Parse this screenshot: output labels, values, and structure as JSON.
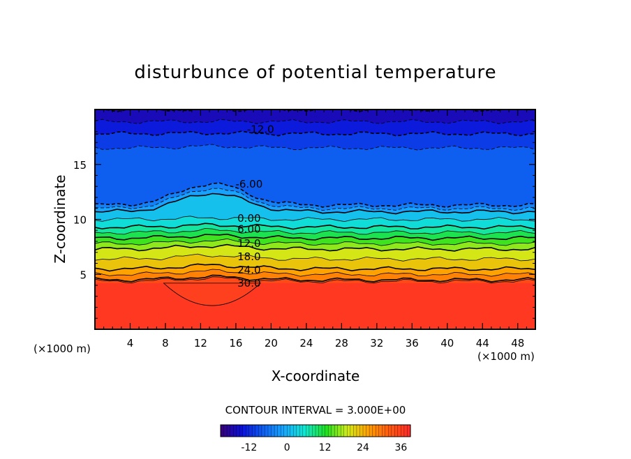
{
  "chart_data": {
    "type": "heatmap",
    "title": "disturbunce of potential temperature",
    "xlabel": "X-coordinate",
    "ylabel": "Z-coordinate",
    "x_unit": "(×1000 m)",
    "x_unit_right": "(×1000 m)",
    "xlim": [
      0,
      50
    ],
    "ylim": [
      0,
      20
    ],
    "x_ticks": [
      "4",
      "8",
      "12",
      "16",
      "20",
      "24",
      "28",
      "32",
      "36",
      "40",
      "44",
      "48"
    ],
    "x_tick_values": [
      4,
      8,
      12,
      16,
      20,
      24,
      28,
      32,
      36,
      40,
      44,
      48
    ],
    "y_ticks": [
      "5",
      "10",
      "15"
    ],
    "y_tick_values": [
      5,
      10,
      15
    ],
    "contour_interval_text": "CONTOUR INTERVAL = 3.000E+00",
    "contour_interval": 3,
    "value_range": [
      -21,
      39
    ],
    "colorbar_ticks": [
      "-12",
      "0",
      "12",
      "24",
      "36"
    ],
    "colorbar_tick_values": [
      -12,
      0,
      12,
      24,
      36
    ],
    "colormap": [
      "#3a0078",
      "#0a10d8",
      "#0e5cf0",
      "#18a8ff",
      "#10e8d0",
      "#20e020",
      "#d0ec18",
      "#ffa000",
      "#ff5a10",
      "#ff2a2a"
    ],
    "ambient_profile": [
      {
        "z": 0,
        "value": 37
      },
      {
        "z": 4.2,
        "value": 37
      },
      {
        "z": 4.5,
        "value": 30
      },
      {
        "z": 5.5,
        "value": 24
      },
      {
        "z": 7.3,
        "value": 18
      },
      {
        "z": 8.3,
        "value": 12
      },
      {
        "z": 9.3,
        "value": 6
      },
      {
        "z": 10.7,
        "value": 0
      },
      {
        "z": 11.3,
        "value": -6
      },
      {
        "z": 16.5,
        "value": -9
      },
      {
        "z": 17.8,
        "value": -12
      },
      {
        "z": 20,
        "value": -18
      }
    ],
    "bubble": {
      "x_center": 13.3,
      "z_bottom": 2.1,
      "z_top": 4.2,
      "half_width_base": 5.5
    },
    "contour_labels": [
      {
        "text": "-12.0",
        "x": 18.8,
        "z": 18.2
      },
      {
        "text": "-6.00",
        "x": 17.5,
        "z": 13.2
      },
      {
        "text": "0.00",
        "x": 17.5,
        "z": 10.1
      },
      {
        "text": "6.00",
        "x": 17.5,
        "z": 9.1
      },
      {
        "text": "12.0",
        "x": 17.5,
        "z": 7.8
      },
      {
        "text": "18.0",
        "x": 17.5,
        "z": 6.6
      },
      {
        "text": "24.0",
        "x": 17.5,
        "z": 5.4
      },
      {
        "text": "30.0",
        "x": 17.5,
        "z": 4.2
      }
    ]
  }
}
